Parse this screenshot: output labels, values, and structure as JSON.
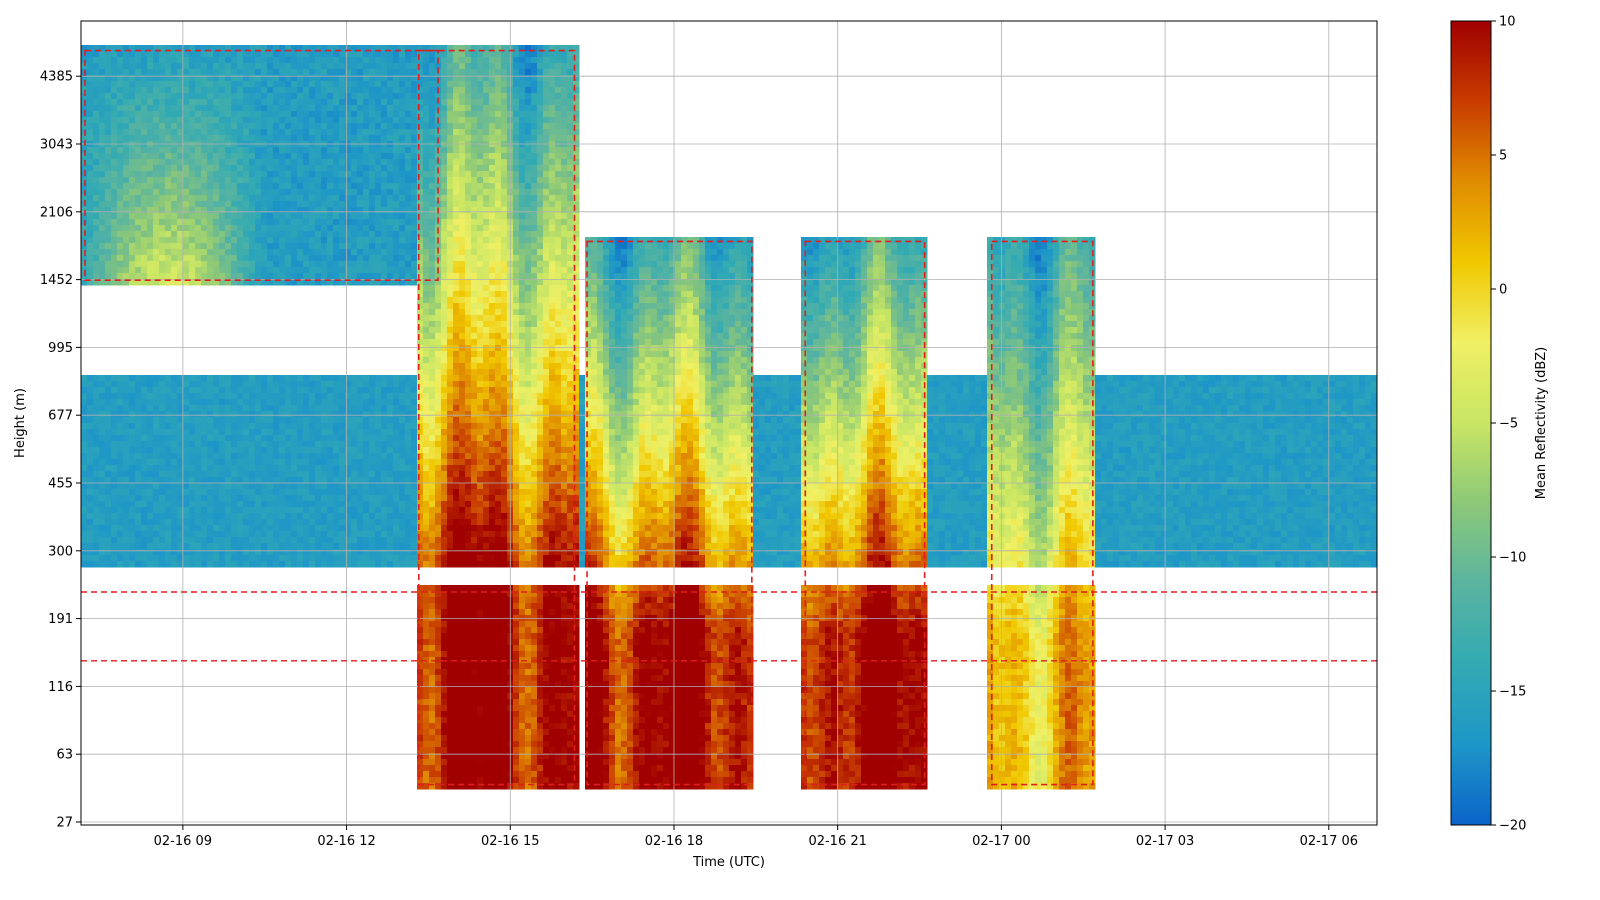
{
  "chart_data": {
    "type": "heatmap",
    "xlabel": "Time (UTC)",
    "ylabel": "Height (m)",
    "x_ticks": [
      "02-16 09",
      "02-16 12",
      "02-16 15",
      "02-16 18",
      "02-16 21",
      "02-17 00",
      "02-17 03",
      "02-17 06"
    ],
    "x_range": [
      "02-16 07:08",
      "02-17 06:53"
    ],
    "y_ticks": [
      27,
      63,
      116,
      191,
      300,
      455,
      677,
      995,
      1452,
      2106,
      3043,
      4385
    ],
    "y_scale": "log-like (non-linear)",
    "grid": true,
    "colorbar": {
      "label": "Mean Reflectivity (dBZ)",
      "min": -20,
      "max": 10,
      "ticks": [
        10,
        5,
        0,
        -5,
        -10,
        -15,
        -20
      ],
      "colormap": [
        "#0a64c8",
        "#1e96c8",
        "#32aab4",
        "#5ab4a0",
        "#8cc878",
        "#c8e664",
        "#f0f064",
        "#f0c800",
        "#e08c00",
        "#c83c00",
        "#a00000"
      ]
    },
    "contour": {
      "style": "dashed",
      "color": "#e01e1e",
      "level_dbz": -13
    },
    "cloud_layers": [
      {
        "start": "02-16 07:08",
        "end": "02-16 13:45",
        "top_m": 5200,
        "base_m": 1400,
        "peak_dbz": 0
      },
      {
        "start": "02-16 13:15",
        "end": "02-16 16:15",
        "top_m": 5200,
        "base_m": 40,
        "peak_dbz": 10
      },
      {
        "start": "02-16 16:20",
        "end": "02-16 19:30",
        "top_m": 1850,
        "base_m": 40,
        "peak_dbz": 10
      },
      {
        "start": "02-16 20:20",
        "end": "02-16 22:40",
        "top_m": 1850,
        "base_m": 40,
        "peak_dbz": 10
      },
      {
        "start": "02-16 23:45",
        "end": "02-17 01:45",
        "top_m": 1850,
        "base_m": 40,
        "peak_dbz": 2
      },
      {
        "start": "02-16 07:08",
        "end": "02-17 06:53",
        "top_m": 850,
        "base_m": 270,
        "peak_dbz": -16
      }
    ],
    "missing_band_m": [
      240,
      270
    ]
  }
}
